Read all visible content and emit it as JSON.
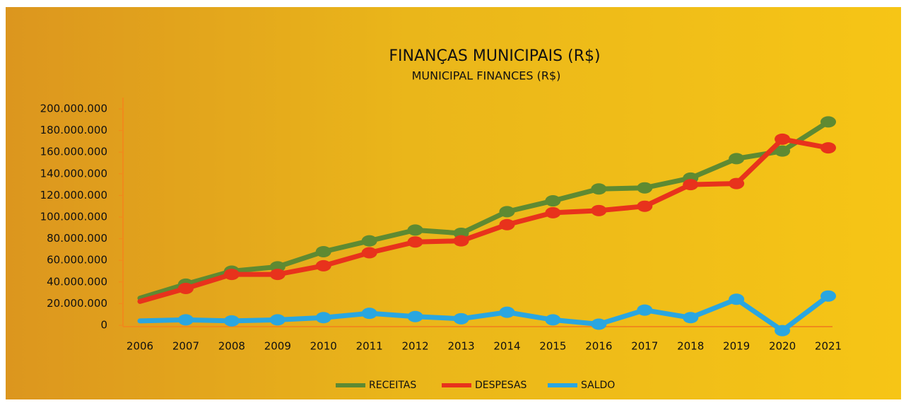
{
  "chart_data": {
    "type": "line",
    "title": "FINANÇAS MUNICIPAIS (R$)",
    "subtitle": "MUNICIPAL FINANCES (R$)",
    "categories": [
      "2006",
      "2007",
      "2008",
      "2009",
      "2010",
      "2011",
      "2012",
      "2013",
      "2014",
      "2015",
      "2016",
      "2017",
      "2018",
      "2019",
      "2020",
      "2021"
    ],
    "series": [
      {
        "name": "RECEITAS",
        "color": "#5e8a32",
        "values": [
          25000000,
          38000000,
          50000000,
          54000000,
          68000000,
          78000000,
          88000000,
          85000000,
          105000000,
          115000000,
          126000000,
          127000000,
          136000000,
          154000000,
          161000000,
          188000000
        ]
      },
      {
        "name": "DESPESAS",
        "color": "#e8321c",
        "values": [
          22000000,
          34000000,
          47000000,
          47000000,
          55000000,
          67000000,
          77000000,
          78000000,
          93000000,
          104000000,
          106000000,
          110000000,
          130000000,
          131000000,
          172000000,
          164000000
        ]
      },
      {
        "name": "SALDO",
        "color": "#2aa6e0",
        "values": [
          4000000,
          5000000,
          4000000,
          5000000,
          7000000,
          11000000,
          8000000,
          6000000,
          12000000,
          5000000,
          1000000,
          14000000,
          7000000,
          24000000,
          -5000000,
          27000000
        ]
      }
    ],
    "ylim": [
      0,
      200000000
    ],
    "yticks": [
      0,
      {
        "value": 20000000,
        "label": "20.000.000"
      },
      {
        "value": 40000000,
        "label": "40.000.000"
      },
      {
        "value": 60000000,
        "label": "60.000.000"
      },
      {
        "value": 80000000,
        "label": "80.000.000"
      },
      {
        "value": 100000000,
        "label": "100.000.000"
      },
      {
        "value": 120000000,
        "label": "120.000.000"
      },
      {
        "value": 140000000,
        "label": "140.000.000"
      },
      {
        "value": 160000000,
        "label": "160.000.000"
      },
      {
        "value": 180000000,
        "label": "180.000.000"
      },
      {
        "value": 200000000,
        "label": "200.000.000"
      }
    ],
    "grid": false
  }
}
